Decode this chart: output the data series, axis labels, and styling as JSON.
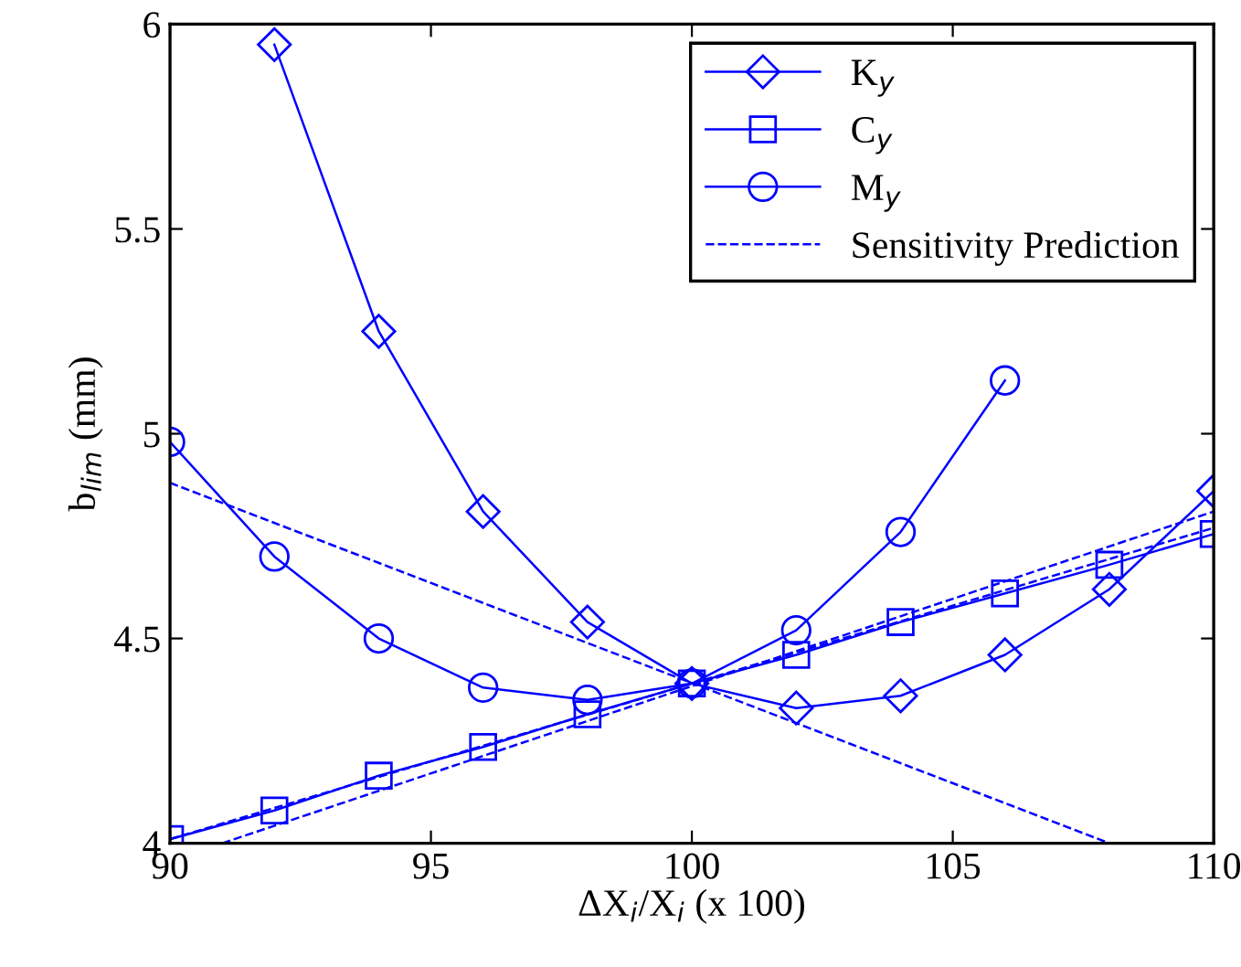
{
  "chart_data": {
    "type": "line",
    "xlabel": "ΔX$_{i}$/X$_{i}$ (x 100)",
    "ylabel": "b$_{lim}$ (mm)",
    "xlim": [
      90,
      110
    ],
    "xticks": [
      90,
      95,
      100,
      105,
      110
    ],
    "ylim": [
      4,
      6
    ],
    "yticks": [
      4,
      4.5,
      5,
      5.5,
      6
    ],
    "grid": false,
    "legend": "top right",
    "series": [
      {
        "name": "K$_{y}$",
        "color": "#0000ff",
        "marker": "diamond",
        "line_style": "solid",
        "x": [
          92,
          94,
          96,
          98,
          100,
          102,
          104,
          106,
          108,
          110
        ],
        "values": [
          5.95,
          5.25,
          4.81,
          4.54,
          4.39,
          4.33,
          4.36,
          4.46,
          4.62,
          4.86
        ]
      },
      {
        "name": "C$_{y}$",
        "color": "#0000ff",
        "marker": "square",
        "line_style": "solid",
        "x": [
          90,
          92,
          94,
          96,
          98,
          100,
          102,
          104,
          106,
          108,
          110
        ],
        "values": [
          4.01,
          4.08,
          4.165,
          4.235,
          4.315,
          4.39,
          4.46,
          4.54,
          4.61,
          4.68,
          4.755
        ]
      },
      {
        "name": "M$_{y}$",
        "color": "#0000ff",
        "marker": "circle",
        "line_style": "solid",
        "x": [
          90,
          92,
          94,
          96,
          98,
          100,
          102,
          104,
          106
        ],
        "values": [
          4.98,
          4.7,
          4.5,
          4.38,
          4.35,
          4.39,
          4.52,
          4.76,
          5.13
        ]
      },
      {
        "name": "Sensitivity Prediction",
        "color": "#0000ff",
        "marker": "none",
        "line_style": "dashed",
        "x": [
          90,
          108
        ],
        "values": [
          4.88,
          4.0
        ]
      },
      {
        "color": "#0000ff",
        "marker": "none",
        "line_style": "dashed",
        "x": [
          91,
          110
        ],
        "values": [
          4.0,
          4.81
        ]
      },
      {
        "color": "#0000ff",
        "marker": "none",
        "line_style": "dashed",
        "x": [
          90,
          110
        ],
        "values": [
          4.01,
          4.77
        ]
      }
    ]
  }
}
